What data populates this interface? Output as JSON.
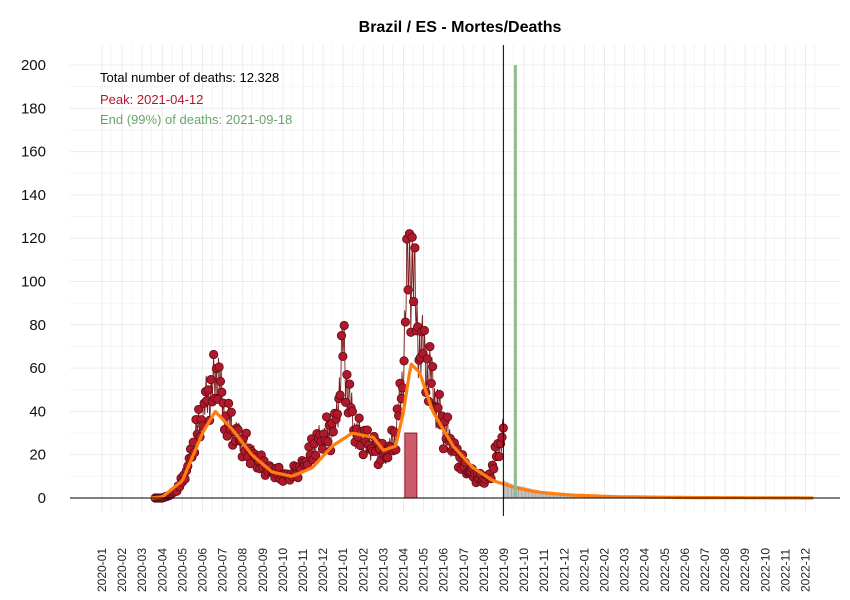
{
  "chart_data": {
    "type": "bar",
    "title": "Brazil / ES - Mortes/Deaths",
    "xlabel": "",
    "ylabel": "",
    "ylim": [
      0,
      200
    ],
    "y_ticks": [
      0,
      20,
      40,
      60,
      80,
      100,
      120,
      140,
      160,
      180,
      200
    ],
    "x_ticks": [
      "2020-01",
      "2020-02",
      "2020-03",
      "2020-04",
      "2020-05",
      "2020-06",
      "2020-07",
      "2020-08",
      "2020-09",
      "2020-10",
      "2020-11",
      "2020-12",
      "2021-01",
      "2021-02",
      "2021-03",
      "2021-04",
      "2021-05",
      "2021-06",
      "2021-07",
      "2021-08",
      "2021-09",
      "2021-10",
      "2021-11",
      "2021-12",
      "2022-01",
      "2022-02",
      "2022-03",
      "2022-04",
      "2022-05",
      "2022-06",
      "2022-07",
      "2022-08",
      "2022-09",
      "2022-10",
      "2022-11",
      "2022-12"
    ],
    "grid": true,
    "annotations": {
      "total": "Total number of deaths: 12.328",
      "peak": "Peak: 2021-04-12",
      "end": "End (99%) of deaths: 2021-09-18"
    },
    "peak_date": "2021-04-12",
    "end_date": "2021-09-18",
    "last_observed_date": "2021-08-31",
    "series": [
      {
        "name": "observed",
        "kind": "daily points (approximate)",
        "dates": [
          "2020-03-21",
          "2020-04-01",
          "2020-04-10",
          "2020-04-20",
          "2020-05-01",
          "2020-05-10",
          "2020-05-20",
          "2020-06-01",
          "2020-06-10",
          "2020-06-20",
          "2020-06-25",
          "2020-07-01",
          "2020-07-10",
          "2020-07-20",
          "2020-08-01",
          "2020-08-10",
          "2020-08-20",
          "2020-09-01",
          "2020-09-10",
          "2020-09-20",
          "2020-10-01",
          "2020-10-10",
          "2020-10-20",
          "2020-11-01",
          "2020-11-10",
          "2020-11-20",
          "2020-12-01",
          "2020-12-10",
          "2020-12-20",
          "2021-01-01",
          "2021-01-10",
          "2021-01-20",
          "2021-02-01",
          "2021-02-10",
          "2021-02-20",
          "2021-03-01",
          "2021-03-10",
          "2021-03-20",
          "2021-03-25",
          "2021-04-01",
          "2021-04-05",
          "2021-04-10",
          "2021-04-15",
          "2021-04-20",
          "2021-05-01",
          "2021-05-10",
          "2021-05-20",
          "2021-06-01",
          "2021-06-10",
          "2021-06-20",
          "2021-07-01",
          "2021-07-10",
          "2021-07-20",
          "2021-08-01",
          "2021-08-10",
          "2021-08-20",
          "2021-08-31"
        ],
        "values": [
          0,
          0,
          1,
          3,
          8,
          15,
          28,
          38,
          48,
          52,
          62,
          40,
          35,
          30,
          25,
          22,
          18,
          15,
          13,
          12,
          10,
          10,
          12,
          15,
          20,
          25,
          28,
          30,
          33,
          70,
          45,
          30,
          28,
          25,
          22,
          20,
          22,
          30,
          40,
          60,
          95,
          108,
          110,
          80,
          65,
          58,
          45,
          32,
          28,
          20,
          15,
          12,
          10,
          8,
          10,
          20,
          30
        ]
      },
      {
        "name": "fitted",
        "kind": "orange smoothed curve (approximate)",
        "dates": [
          "2020-03-15",
          "2020-04-01",
          "2020-05-01",
          "2020-06-01",
          "2020-06-20",
          "2020-07-15",
          "2020-08-15",
          "2020-09-15",
          "2020-10-15",
          "2020-11-15",
          "2020-12-15",
          "2021-01-15",
          "2021-02-15",
          "2021-03-01",
          "2021-03-20",
          "2021-04-01",
          "2021-04-12",
          "2021-04-25",
          "2021-05-15",
          "2021-06-15",
          "2021-07-15",
          "2021-08-15",
          "2021-09-15",
          "2021-10-15",
          "2021-11-15",
          "2021-12-15",
          "2022-01-15",
          "2022-02-15",
          "2022-06-15",
          "2022-12-15"
        ],
        "values": [
          0,
          0.5,
          8,
          30,
          40,
          32,
          20,
          12,
          10,
          14,
          24,
          30,
          28,
          22,
          24,
          40,
          62,
          58,
          40,
          24,
          14,
          8,
          5,
          3,
          2,
          1.3,
          1,
          0.6,
          0.2,
          0
        ]
      },
      {
        "name": "projection",
        "kind": "grey bars (approximate)",
        "dates": [
          "2021-09-01",
          "2021-09-15",
          "2021-10-01",
          "2021-10-15",
          "2021-11-01",
          "2021-11-15",
          "2021-12-01",
          "2022-01-01",
          "2022-02-01",
          "2022-04-01"
        ],
        "values": [
          8,
          6,
          5,
          4,
          3,
          2.5,
          2,
          1.5,
          1,
          0.3
        ]
      }
    ],
    "colors": {
      "observed_point": "#b2182b",
      "observed_outline": "#5a0d14",
      "fitted_line": "#ff7f0e",
      "projection_bar": "#a9a9a9",
      "peak_bar": "#cd5c6a",
      "end_line": "#8fbc8f",
      "current_line": "#000000",
      "total_text": "#000000",
      "peak_text": "#b2182b",
      "end_text": "#6aa56a",
      "grid": "#ececec"
    }
  }
}
